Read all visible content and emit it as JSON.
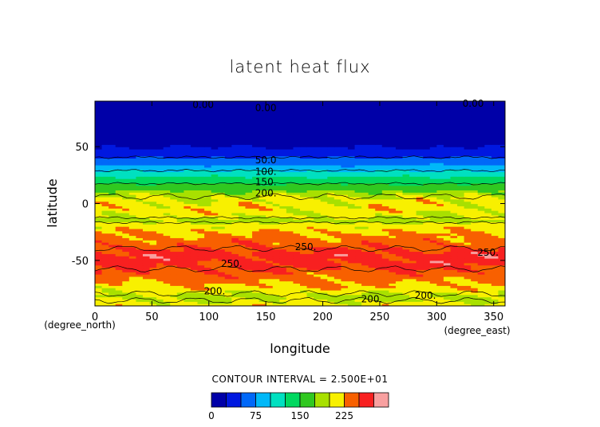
{
  "chart_data": {
    "type": "heatmap",
    "title": "latent heat flux",
    "xlabel": "longitude",
    "ylabel": "latitude",
    "x_unit_label": "(degree_east)",
    "y_unit_label": "(degree_north)",
    "xlim": [
      0,
      360
    ],
    "ylim": [
      -90,
      90
    ],
    "x_ticks": [
      0,
      50,
      100,
      150,
      200,
      250,
      300,
      350
    ],
    "y_ticks": [
      -50,
      0,
      50
    ],
    "x_tick_labels": [
      "0",
      "50",
      "100",
      "150",
      "200",
      "250",
      "300",
      "350"
    ],
    "y_tick_labels": [
      "-50",
      "0",
      "50"
    ],
    "contour_interval_text": "CONTOUR INTERVAL = 2.500E+01",
    "contour_interval": 25,
    "levels": [
      0,
      25,
      50,
      75,
      100,
      125,
      150,
      175,
      200,
      225,
      250,
      275
    ],
    "colors": [
      "#0000a8",
      "#0018e0",
      "#0068f8",
      "#00b8f8",
      "#00e0c0",
      "#00d860",
      "#30c820",
      "#a8e000",
      "#f8f000",
      "#f86000",
      "#f82020",
      "#f8a0a0"
    ],
    "colorbar_ticks": [
      0,
      75,
      150,
      225
    ],
    "colorbar_tick_labels": [
      "0",
      "75",
      "150",
      "225"
    ],
    "latitude_band_values": [
      {
        "lat": -90,
        "value": 215
      },
      {
        "lat": -82,
        "value": 190
      },
      {
        "lat": -75,
        "value": 215
      },
      {
        "lat": -65,
        "value": 235
      },
      {
        "lat": -55,
        "value": 255
      },
      {
        "lat": -45,
        "value": 262
      },
      {
        "lat": -35,
        "value": 240
      },
      {
        "lat": -25,
        "value": 225
      },
      {
        "lat": -15,
        "value": 195
      },
      {
        "lat": -5,
        "value": 215
      },
      {
        "lat": 5,
        "value": 205
      },
      {
        "lat": 15,
        "value": 160
      },
      {
        "lat": 25,
        "value": 120
      },
      {
        "lat": 35,
        "value": 70
      },
      {
        "lat": 45,
        "value": 35
      },
      {
        "lat": 55,
        "value": 15
      },
      {
        "lat": 65,
        "value": 10
      },
      {
        "lat": 75,
        "value": 5
      },
      {
        "lat": 85,
        "value": -5
      }
    ],
    "contour_labels": [
      {
        "text": "0.00",
        "lon": 95,
        "lat": 87
      },
      {
        "text": "0.00",
        "lon": 150,
        "lat": 84
      },
      {
        "text": "0.00",
        "lon": 332,
        "lat": 88
      },
      {
        "text": "50.0",
        "lon": 150,
        "lat": 38
      },
      {
        "text": "100.",
        "lon": 150,
        "lat": 28
      },
      {
        "text": "150.",
        "lon": 150,
        "lat": 19
      },
      {
        "text": "200.",
        "lon": 150,
        "lat": 9
      },
      {
        "text": "250.",
        "lon": 185,
        "lat": -38
      },
      {
        "text": "250.",
        "lon": 120,
        "lat": -53
      },
      {
        "text": "250.",
        "lon": 345,
        "lat": -43
      },
      {
        "text": "200.",
        "lon": 105,
        "lat": -77
      },
      {
        "text": "200.",
        "lon": 243,
        "lat": -84
      },
      {
        "text": "200.",
        "lon": 290,
        "lat": -81
      }
    ]
  }
}
